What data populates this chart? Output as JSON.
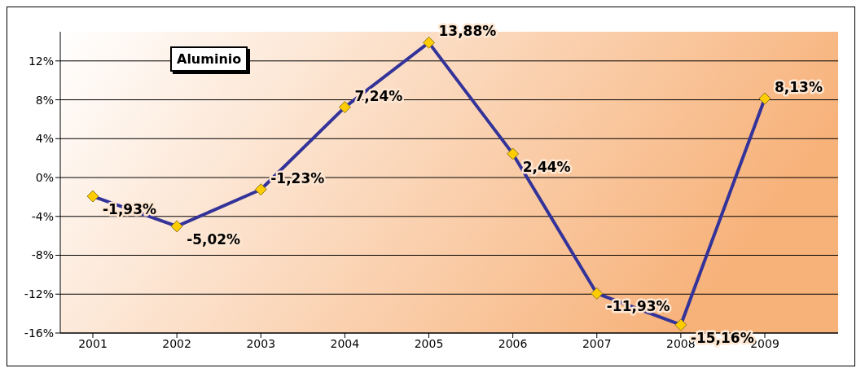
{
  "chart_data": {
    "type": "line",
    "title": "Aluminio",
    "categories": [
      "2001",
      "2002",
      "2003",
      "2004",
      "2005",
      "2006",
      "2007",
      "2008",
      "2009"
    ],
    "series": [
      {
        "color": "#333399",
        "values": [
          -1.93,
          -5.02,
          -1.23,
          7.24,
          13.88,
          2.44,
          -11.93,
          -15.16,
          8.13
        ],
        "value_labels": [
          "-1,93%",
          "-5,02%",
          "-1,23%",
          "7,24%",
          "13,88%",
          "2,44%",
          "-11,93%",
          "-15,16%",
          "8,13%"
        ]
      }
    ],
    "ylim": [
      -16,
      15
    ],
    "yticks": [
      {
        "value": -16,
        "label": "-16%"
      },
      {
        "value": -12,
        "label": "-12%"
      },
      {
        "value": -8,
        "label": "-8%"
      },
      {
        "value": -4,
        "label": "-4%"
      },
      {
        "value": 0,
        "label": "0%"
      },
      {
        "value": 4,
        "label": "4%"
      },
      {
        "value": 8,
        "label": "8%"
      },
      {
        "value": 12,
        "label": "12%"
      }
    ],
    "grid": "y",
    "marker": "diamond",
    "legend": false
  }
}
